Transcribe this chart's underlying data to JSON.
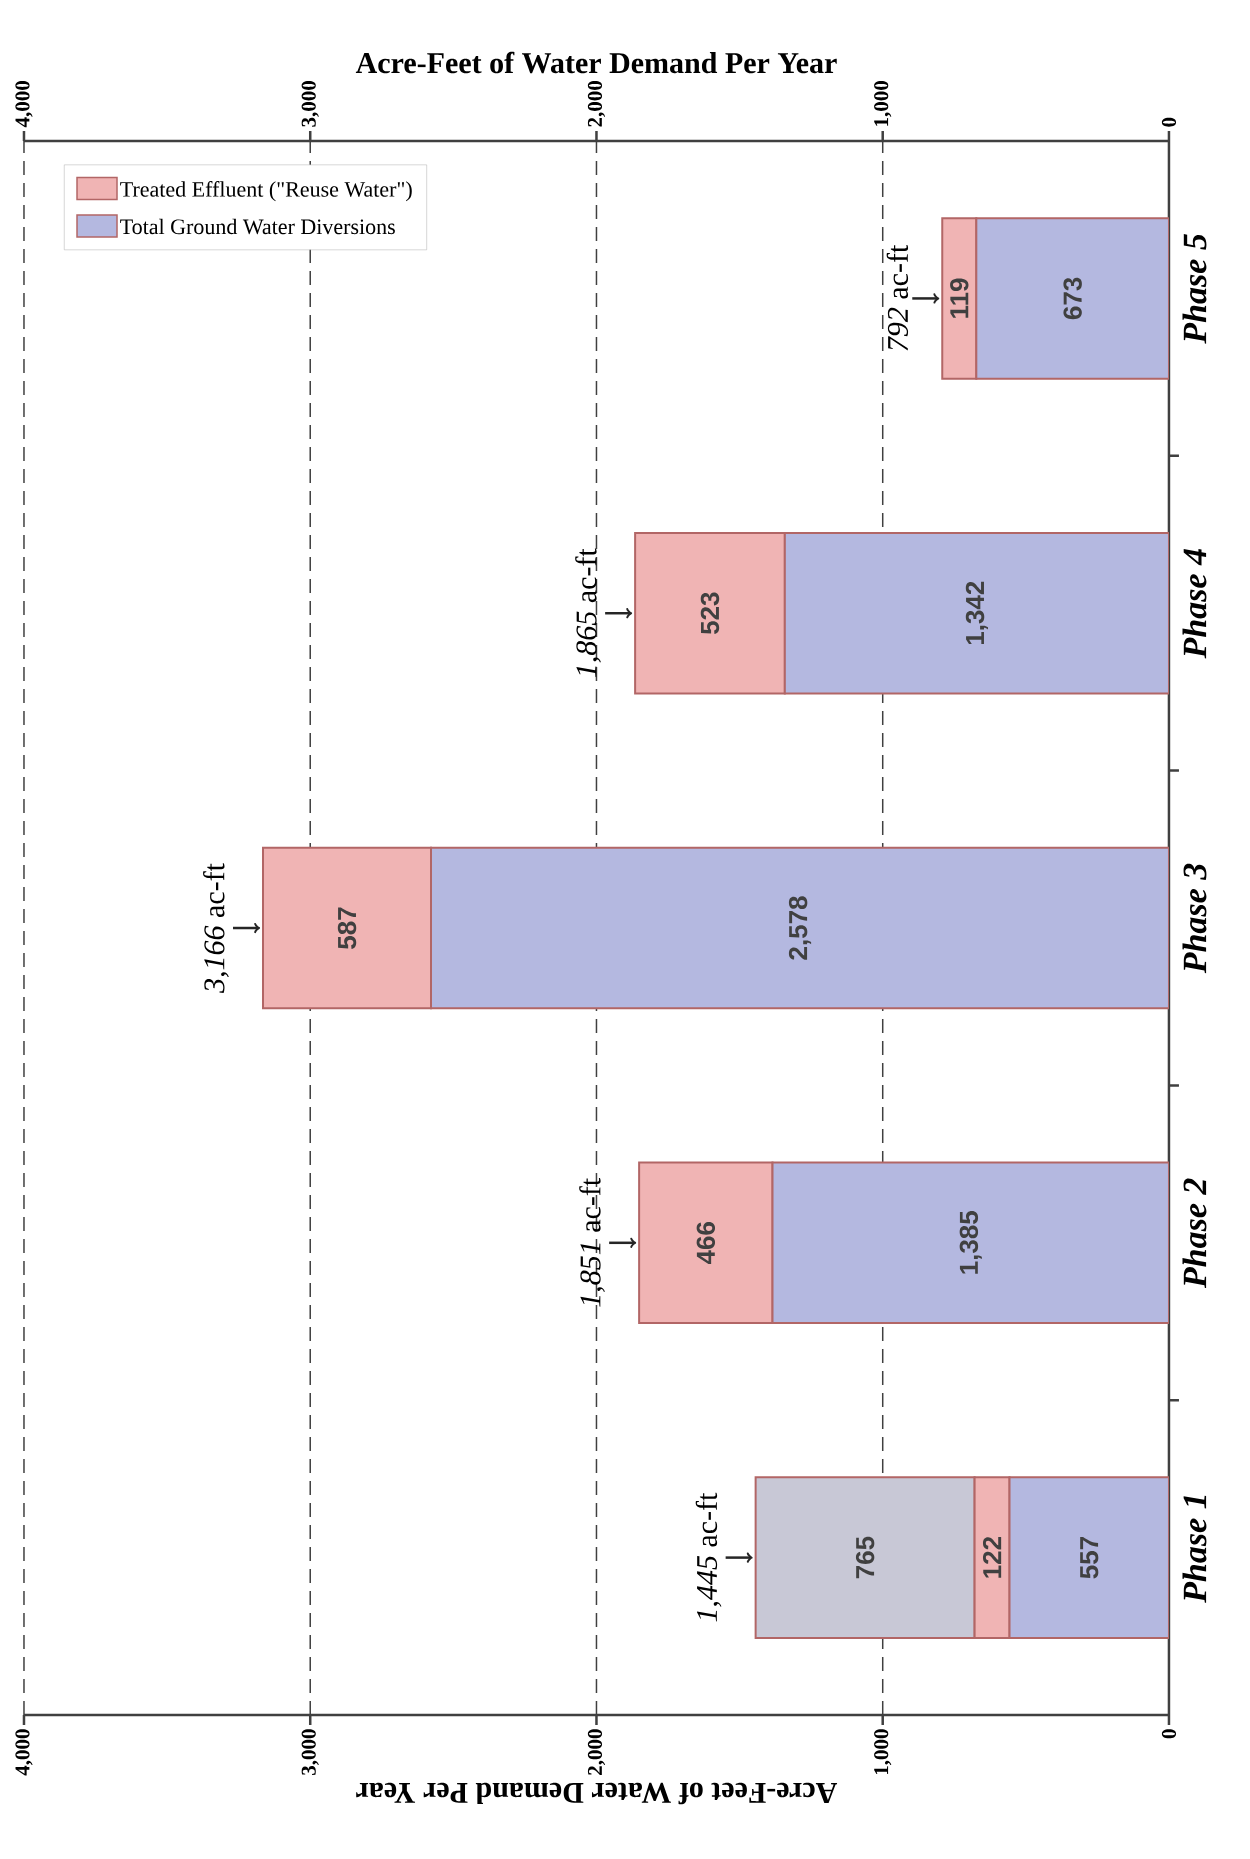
{
  "chart_data": {
    "type": "bar",
    "stacked": true,
    "orientation": "horizontal",
    "categories": [
      "Phase 5",
      "Phase 4",
      "Phase 3",
      "Phase 2",
      "Phase 1"
    ],
    "series": [
      {
        "name": "Total Ground Water Diversions",
        "color": "#b4b8e0",
        "values": [
          673,
          1342,
          2578,
          1385,
          557
        ],
        "value_labels": [
          "673",
          "1,342",
          "2,578",
          "1,385",
          "557"
        ]
      },
      {
        "name": "Treated Effluent (\"Reuse Water\")",
        "color": "#f0b4b4",
        "values": [
          119,
          523,
          587,
          466,
          122
        ],
        "value_labels": [
          "119",
          "523",
          "587",
          "466",
          "122"
        ]
      },
      {
        "color": "#c8c8d6",
        "values": [
          null,
          null,
          null,
          null,
          765
        ],
        "value_labels": [
          null,
          null,
          null,
          null,
          "765"
        ]
      }
    ],
    "totals": [
      "*792* ac-ft",
      "*1,865* ac-ft",
      "*3,166* ac-ft",
      "*1,851* ac-ft",
      "*1,445* ac-ft"
    ],
    "xlabel": "Acre-Feet of Water Demand Per Year",
    "x2label": "Acre-Feet of Water Demand Per Year",
    "xlim": [
      4000,
      0
    ],
    "xticks": [
      {
        "value": 4000,
        "label": "4,000"
      },
      {
        "value": 3000,
        "label": "3,000"
      },
      {
        "value": 2000,
        "label": "2,000"
      },
      {
        "value": 1000,
        "label": "1,000"
      },
      0
    ],
    "x2lim": [
      4000,
      0
    ],
    "x2ticks": [
      {
        "value": 4000,
        "label": "4,000"
      },
      {
        "value": 3000,
        "label": "3,000"
      },
      {
        "value": 2000,
        "label": "2,000"
      },
      {
        "value": 1000,
        "label": "1,000"
      },
      0
    ],
    "grid": "x",
    "legend": "top left"
  }
}
